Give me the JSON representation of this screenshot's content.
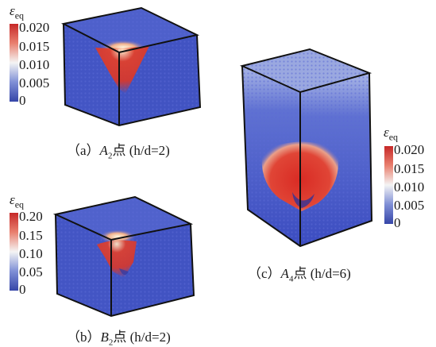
{
  "colorbar_symbol": "ε",
  "colorbar_symbol_sub": "eq",
  "colors": {
    "low": "#3b4cc0",
    "mid": "#f2f2f2",
    "high": "#d2312a",
    "edge": "#111111"
  },
  "panels": {
    "a": {
      "ticks": [
        "0.020",
        "0.015",
        "0.010",
        "0.005",
        "0"
      ],
      "caption": {
        "prefix": "（a）",
        "point": "A",
        "point_sub": "2",
        "suffix": "点",
        "ratio": "(h/d=2)"
      }
    },
    "b": {
      "ticks": [
        "0.20",
        "0.15",
        "0.10",
        "0.05",
        "0"
      ],
      "caption": {
        "prefix": "（b）",
        "point": "B",
        "point_sub": "2",
        "suffix": "点",
        "ratio": "(h/d=2)"
      }
    },
    "c": {
      "ticks": [
        "0.020",
        "0.015",
        "0.010",
        "0.005",
        "0"
      ],
      "caption": {
        "prefix": "（c）",
        "point": "A",
        "point_sub": "4",
        "suffix": "点",
        "ratio": "(h/d=6)"
      }
    }
  }
}
